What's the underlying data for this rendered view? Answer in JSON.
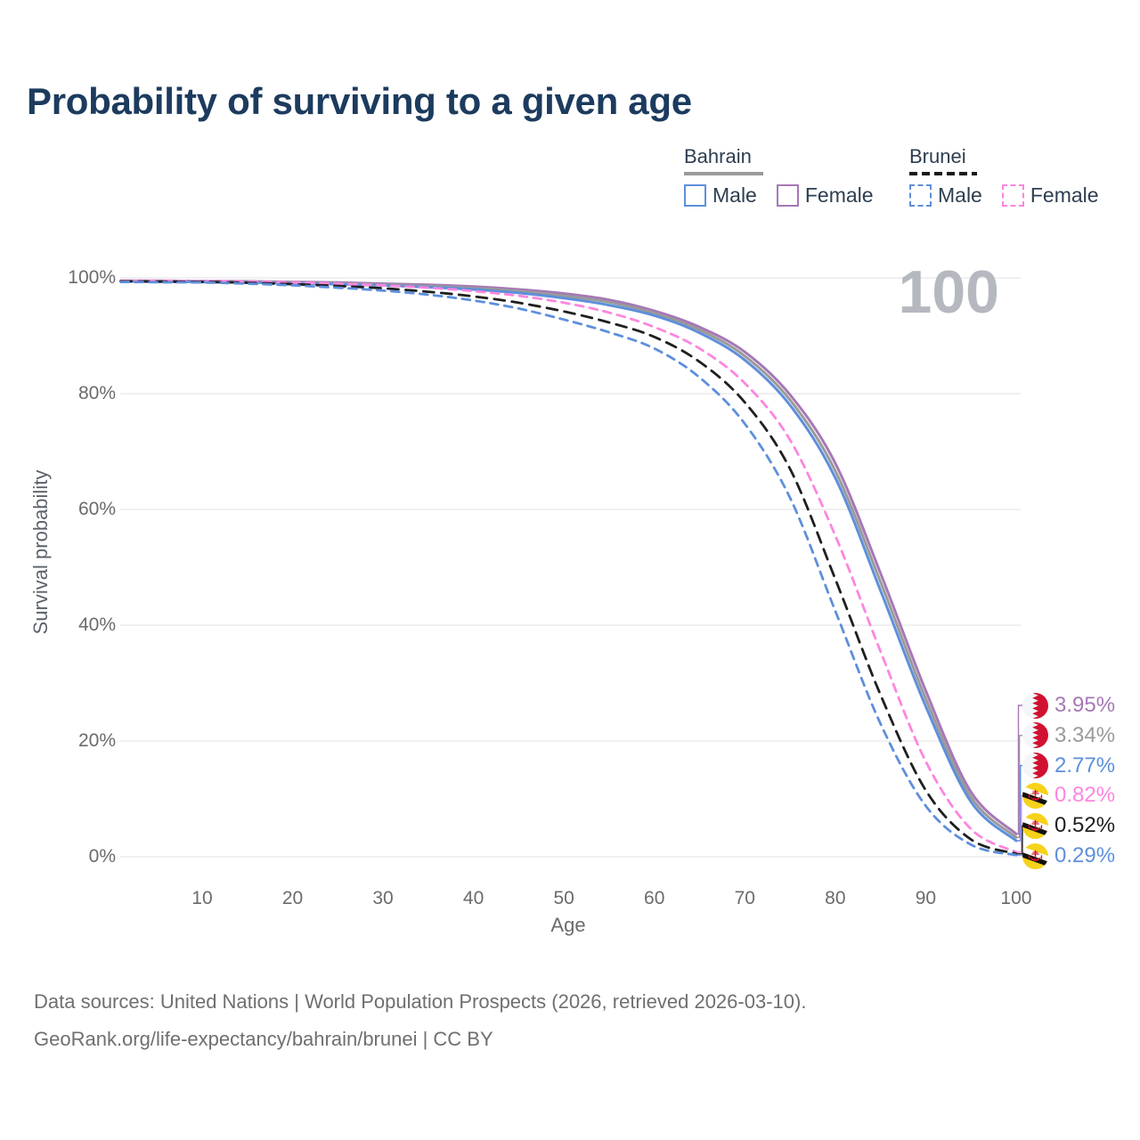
{
  "title": "Probability of surviving to a given age",
  "watermark": "100",
  "legend": {
    "groups": [
      {
        "label": "Bahrain",
        "line_style": "solid",
        "line_color": "#9a9a9a",
        "items": [
          {
            "label": "Male",
            "color": "#5e8fdb",
            "style": "solid"
          },
          {
            "label": "Female",
            "color": "#a678b5",
            "style": "solid"
          }
        ]
      },
      {
        "label": "Brunei",
        "line_style": "dashed",
        "line_color": "#1a1a1a",
        "items": [
          {
            "label": "Male",
            "color": "#5e8fdb",
            "style": "dashed"
          },
          {
            "label": "Female",
            "color": "#fc86df",
            "style": "dashed"
          }
        ]
      }
    ]
  },
  "chart_data": {
    "type": "line",
    "title": "Probability of surviving to a given age",
    "xlabel": "Age",
    "ylabel": "Survival probability",
    "xlim": [
      1,
      100
    ],
    "ylim": [
      0,
      100
    ],
    "x_ticks": [
      10,
      20,
      30,
      40,
      50,
      60,
      70,
      80,
      90,
      100
    ],
    "y_ticks": [
      0,
      20,
      40,
      60,
      80,
      100
    ],
    "y_tick_suffix": "%",
    "grid": "horizontal",
    "legend_position": "top-right",
    "x": [
      1,
      5,
      10,
      15,
      20,
      25,
      30,
      35,
      40,
      45,
      50,
      55,
      60,
      65,
      70,
      75,
      80,
      85,
      90,
      95,
      100
    ],
    "series": [
      {
        "name": "Bahrain Female",
        "country": "Bahrain",
        "sex": "Female",
        "color": "#a678b5",
        "dash": "solid",
        "dash_pattern": "",
        "flag": "bahrain",
        "end_label": "3.95%",
        "values": [
          99.5,
          99.5,
          99.45,
          99.4,
          99.3,
          99.2,
          99.0,
          98.8,
          98.5,
          98.0,
          97.3,
          96.2,
          94.3,
          91.5,
          87.2,
          79.8,
          68.0,
          49.0,
          28.7,
          11.2,
          3.95
        ]
      },
      {
        "name": "Bahrain Both sexes",
        "country": "Bahrain",
        "sex": "Both",
        "color": "#9a9a9a",
        "dash": "solid",
        "dash_pattern": "",
        "flag": "bahrain",
        "end_label": "3.34%",
        "values": [
          99.45,
          99.4,
          99.35,
          99.3,
          99.2,
          99.05,
          98.85,
          98.6,
          98.2,
          97.7,
          96.9,
          95.8,
          93.9,
          91.0,
          86.5,
          78.9,
          66.7,
          47.5,
          27.3,
          10.3,
          3.34
        ]
      },
      {
        "name": "Bahrain Male",
        "country": "Bahrain",
        "sex": "Male",
        "color": "#5e8fdb",
        "dash": "solid",
        "dash_pattern": "",
        "flag": "bahrain",
        "end_label": "2.77%",
        "values": [
          99.4,
          99.35,
          99.3,
          99.2,
          99.1,
          98.9,
          98.7,
          98.4,
          98.0,
          97.4,
          96.5,
          95.3,
          93.5,
          90.5,
          85.8,
          78.0,
          65.5,
          46.0,
          26.0,
          9.5,
          2.77
        ]
      },
      {
        "name": "Brunei Female",
        "country": "Brunei",
        "sex": "Female",
        "color": "#fc86df",
        "dash": "dashed",
        "dash_pattern": "9 7",
        "flag": "brunei",
        "end_label": "0.82%",
        "values": [
          99.5,
          99.5,
          99.45,
          99.35,
          99.2,
          99.0,
          98.7,
          98.3,
          97.7,
          96.9,
          95.7,
          94.0,
          91.5,
          87.8,
          81.8,
          72.0,
          55.5,
          35.5,
          16.5,
          4.8,
          0.82
        ]
      },
      {
        "name": "Brunei Both sexes",
        "country": "Brunei",
        "sex": "Both",
        "color": "#1f1f1f",
        "dash": "dashed",
        "dash_pattern": "12 8",
        "flag": "brunei",
        "end_label": "0.52%",
        "values": [
          99.4,
          99.35,
          99.3,
          99.15,
          98.9,
          98.6,
          98.2,
          97.6,
          96.8,
          95.7,
          94.2,
          92.3,
          89.8,
          85.5,
          78.5,
          67.0,
          48.0,
          28.0,
          11.5,
          3.0,
          0.52
        ]
      },
      {
        "name": "Brunei Male",
        "country": "Brunei",
        "sex": "Male",
        "color": "#5e8fdb",
        "dash": "dashed",
        "dash_pattern": "9 7",
        "flag": "brunei",
        "end_label": "0.29%",
        "values": [
          99.3,
          99.25,
          99.2,
          99.0,
          98.7,
          98.3,
          97.8,
          97.1,
          96.1,
          94.7,
          92.8,
          90.6,
          87.8,
          82.8,
          74.8,
          62.0,
          42.5,
          23.0,
          8.8,
          2.1,
          0.29
        ]
      }
    ],
    "flag_colors": {
      "bahrain_red": "#d01131",
      "bahrain_white": "#f4f6f8",
      "brunei_yellow": "#f7d21a",
      "brunei_white": "#ffffff",
      "brunei_black": "#111111",
      "brunei_red": "#cf1126"
    }
  },
  "footer": {
    "line1": "Data sources: United Nations | World Population Prospects (2026, retrieved 2026-03-10).",
    "line2": "GeoRank.org/life-expectancy/bahrain/brunei | CC BY"
  }
}
